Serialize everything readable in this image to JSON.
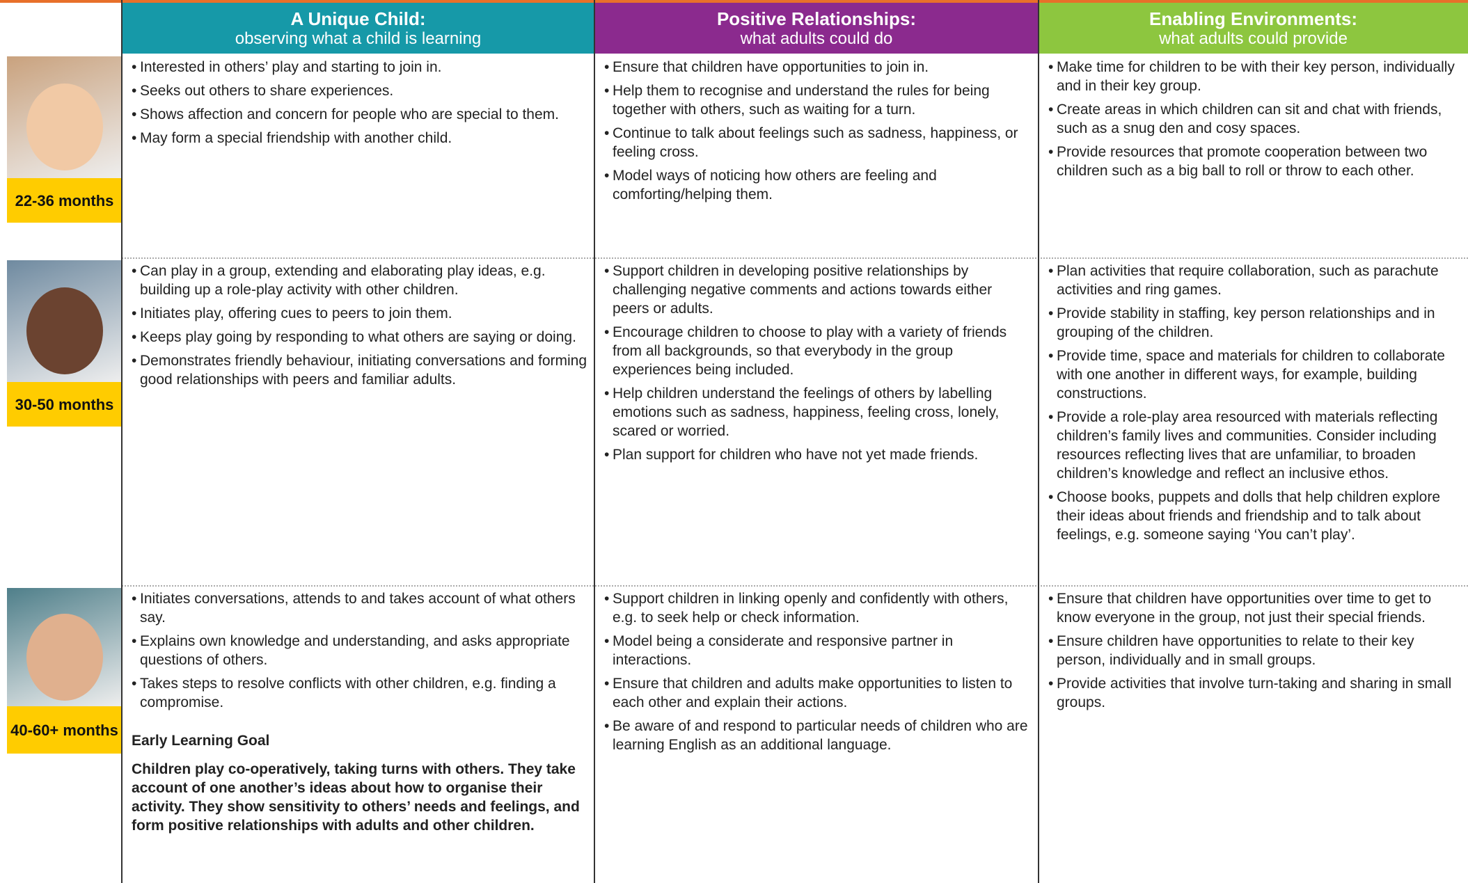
{
  "header": {
    "columns": [
      {
        "title": "A Unique Child:",
        "subtitle": "observing what a child is learning"
      },
      {
        "title": "Positive Relationships:",
        "subtitle": "what adults could do"
      },
      {
        "title": "Enabling Environments:",
        "subtitle": "what adults could provide"
      }
    ]
  },
  "rows": [
    {
      "age": "22-36 months",
      "cells": [
        [
          "Interested in others’ play and starting to join in.",
          "Seeks out others to share experiences.",
          "Shows affection and concern for people who are special to them.",
          "May form a special friendship with another child."
        ],
        [
          "Ensure that children have opportunities to join in.",
          "Help them to recognise and understand the rules for being together with others, such as waiting for a turn.",
          "Continue to talk about feelings such as sadness, happiness, or feeling cross.",
          "Model ways of noticing how others are feeling and comforting/helping them."
        ],
        [
          "Make time for children to be with their key person, individually and in their key group.",
          "Create areas in which children can sit and chat with friends, such as a snug den and cosy spaces.",
          "Provide resources that promote cooperation between two children such as a big ball to roll or throw to each other."
        ]
      ]
    },
    {
      "age": "30-50 months",
      "cells": [
        [
          "Can play in a group, extending and elaborating play ideas, e.g. building up a role-play activity with other children.",
          "Initiates play, offering cues to peers to join them.",
          "Keeps play going by responding to what others are saying or doing.",
          "Demonstrates friendly behaviour, initiating conversations and forming good relationships with peers and familiar adults."
        ],
        [
          "Support children in developing positive relationships by challenging negative comments and actions towards either peers or adults.",
          "Encourage children to choose to play with a variety of friends from all backgrounds, so that everybody in the group experiences being included.",
          "Help children understand the feelings of others by labelling emotions such as sadness, happiness, feeling cross, lonely, scared or worried.",
          "Plan support for children who have not yet made friends."
        ],
        [
          "Plan activities that require collaboration, such as parachute activities and ring games.",
          "Provide stability in staffing, key person relationships and in grouping of the children.",
          "Provide time, space and materials for children to collaborate with one another in different ways, for example, building constructions.",
          "Provide a role-play area resourced with materials reflecting children’s family lives and communities. Consider including resources reflecting lives that are unfamiliar, to broaden children’s knowledge and reflect an inclusive ethos.",
          "Choose books, puppets and dolls that help children explore their ideas about friends and friendship and to talk about feelings, e.g. someone saying ‘You can’t play’."
        ]
      ]
    },
    {
      "age": "40-60+ months",
      "cells": [
        [
          "Initiates conversations, attends to and takes account of what others say.",
          "Explains own knowledge and understanding, and asks appropriate questions of others.",
          "Takes steps to resolve conflicts with other children, e.g. finding a compromise."
        ],
        [
          "Support children in linking openly and confidently with others, e.g. to seek help or check information.",
          "Model being a considerate and responsive partner in interactions.",
          "Ensure that children and adults make opportunities to listen to each other and explain their actions.",
          "Be aware of and respond to particular needs of children who are learning English as an additional language."
        ],
        [
          "Ensure that children have opportunities over time to get to know everyone in the group, not just their special friends.",
          "Ensure children have opportunities to relate to their key person, individually and in small groups.",
          "Provide activities that involve turn-taking and sharing in small groups."
        ]
      ]
    }
  ],
  "early_learning_goal": {
    "heading": "Early Learning Goal",
    "text": "Children play co-operatively, taking turns with others. They take account of one another’s ideas about how to organise their activity. They show sensitivity to others’ needs and feelings, and form positive relationships with adults and other children."
  }
}
